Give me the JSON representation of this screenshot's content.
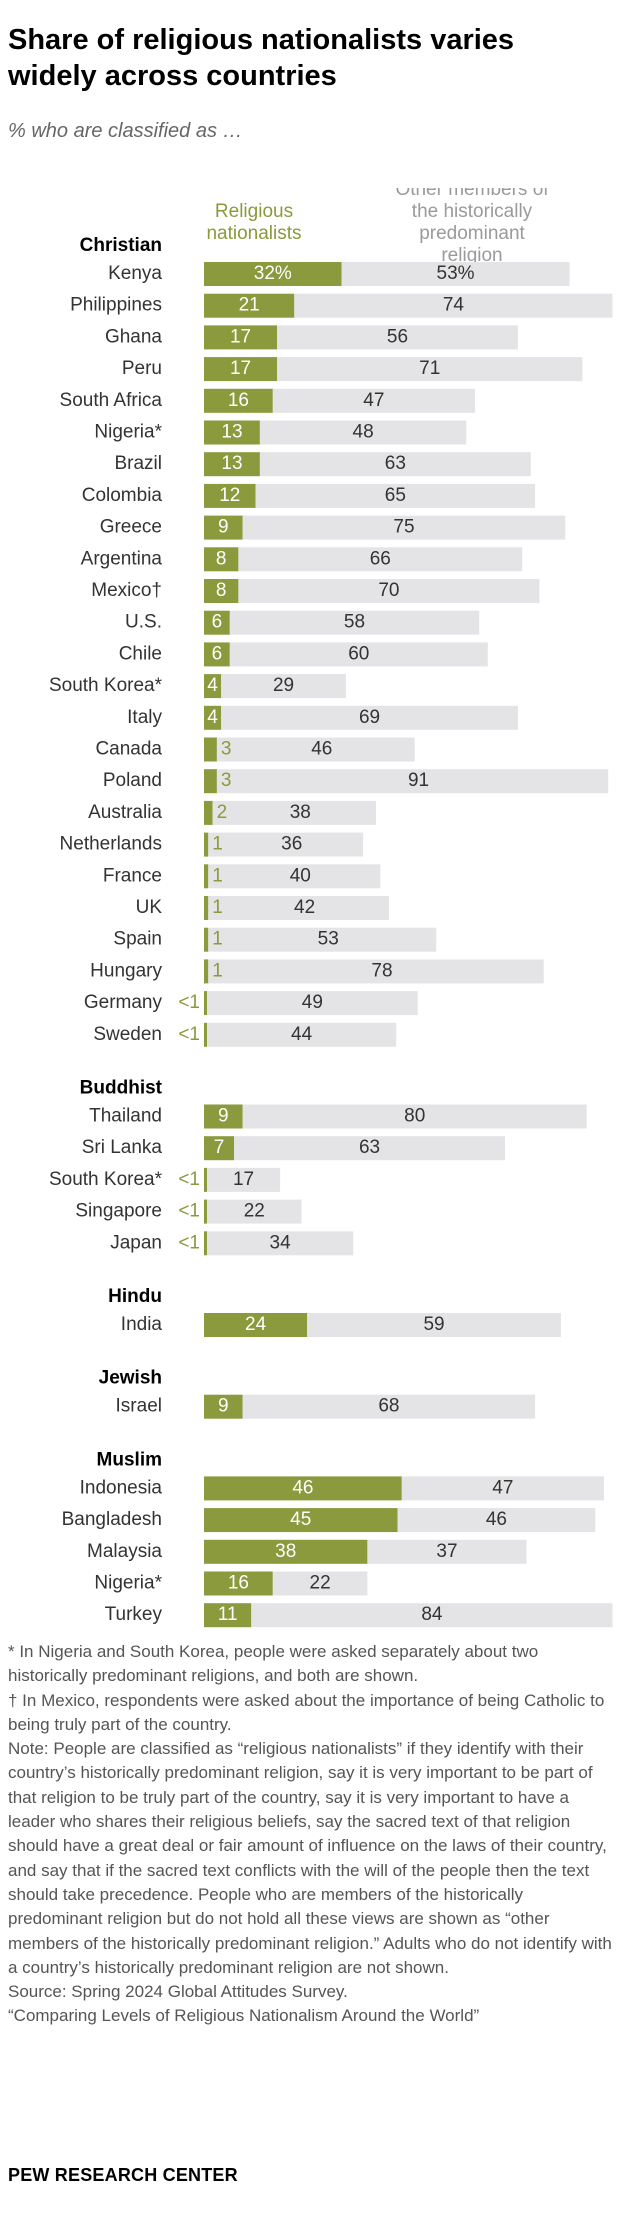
{
  "title": "Share of religious nationalists varies widely across countries",
  "subtitle": "% who are classified as …",
  "chart_data": {
    "type": "bar",
    "stacked": true,
    "orientation": "horizontal",
    "series": [
      {
        "name": "Religious nationalists",
        "color": "#8a9a3c"
      },
      {
        "name": "Other members of the historically predominant religion",
        "color": "#e4e4e6"
      }
    ],
    "groups": [
      {
        "name": "Christian",
        "rows": [
          {
            "label": "Kenya",
            "values": [
              32,
              53
            ],
            "labels": [
              "32%",
              "53%"
            ]
          },
          {
            "label": "Philippines",
            "values": [
              21,
              74
            ],
            "labels": [
              "21",
              "74"
            ]
          },
          {
            "label": "Ghana",
            "values": [
              17,
              56
            ],
            "labels": [
              "17",
              "56"
            ]
          },
          {
            "label": "Peru",
            "values": [
              17,
              71
            ],
            "labels": [
              "17",
              "71"
            ]
          },
          {
            "label": "South Africa",
            "values": [
              16,
              47
            ],
            "labels": [
              "16",
              "47"
            ]
          },
          {
            "label": "Nigeria*",
            "values": [
              13,
              48
            ],
            "labels": [
              "13",
              "48"
            ]
          },
          {
            "label": "Brazil",
            "values": [
              13,
              63
            ],
            "labels": [
              "13",
              "63"
            ]
          },
          {
            "label": "Colombia",
            "values": [
              12,
              65
            ],
            "labels": [
              "12",
              "65"
            ]
          },
          {
            "label": "Greece",
            "values": [
              9,
              75
            ],
            "labels": [
              "9",
              "75"
            ]
          },
          {
            "label": "Argentina",
            "values": [
              8,
              66
            ],
            "labels": [
              "8",
              "66"
            ]
          },
          {
            "label": "Mexico†",
            "values": [
              8,
              70
            ],
            "labels": [
              "8",
              "70"
            ]
          },
          {
            "label": "U.S.",
            "values": [
              6,
              58
            ],
            "labels": [
              "6",
              "58"
            ]
          },
          {
            "label": "Chile",
            "values": [
              6,
              60
            ],
            "labels": [
              "6",
              "60"
            ]
          },
          {
            "label": "South Korea*",
            "values": [
              4,
              29
            ],
            "labels": [
              "4",
              "29"
            ]
          },
          {
            "label": "Italy",
            "values": [
              4,
              69
            ],
            "labels": [
              "4",
              "69"
            ]
          },
          {
            "label": "Canada",
            "values": [
              3,
              46
            ],
            "labels": [
              "3",
              "46"
            ]
          },
          {
            "label": "Poland",
            "values": [
              3,
              91
            ],
            "labels": [
              "3",
              "91"
            ]
          },
          {
            "label": "Australia",
            "values": [
              2,
              38
            ],
            "labels": [
              "2",
              "38"
            ]
          },
          {
            "label": "Netherlands",
            "values": [
              1,
              36
            ],
            "labels": [
              "1",
              "36"
            ]
          },
          {
            "label": "France",
            "values": [
              1,
              40
            ],
            "labels": [
              "1",
              "40"
            ]
          },
          {
            "label": "UK",
            "values": [
              1,
              42
            ],
            "labels": [
              "1",
              "42"
            ]
          },
          {
            "label": "Spain",
            "values": [
              1,
              53
            ],
            "labels": [
              "1",
              "53"
            ]
          },
          {
            "label": "Hungary",
            "values": [
              1,
              78
            ],
            "labels": [
              "1",
              "78"
            ]
          },
          {
            "label": "Germany",
            "values": [
              0.4,
              49
            ],
            "labels": [
              "<1",
              "49"
            ]
          },
          {
            "label": "Sweden",
            "values": [
              0.4,
              44
            ],
            "labels": [
              "<1",
              "44"
            ]
          }
        ]
      },
      {
        "name": "Buddhist",
        "rows": [
          {
            "label": "Thailand",
            "values": [
              9,
              80
            ],
            "labels": [
              "9",
              "80"
            ]
          },
          {
            "label": "Sri Lanka",
            "values": [
              7,
              63
            ],
            "labels": [
              "7",
              "63"
            ]
          },
          {
            "label": "South Korea*",
            "values": [
              0.4,
              17
            ],
            "labels": [
              "<1",
              "17"
            ]
          },
          {
            "label": "Singapore",
            "values": [
              0.4,
              22
            ],
            "labels": [
              "<1",
              "22"
            ]
          },
          {
            "label": "Japan",
            "values": [
              0.4,
              34
            ],
            "labels": [
              "<1",
              "34"
            ]
          }
        ]
      },
      {
        "name": "Hindu",
        "rows": [
          {
            "label": "India",
            "values": [
              24,
              59
            ],
            "labels": [
              "24",
              "59"
            ]
          }
        ]
      },
      {
        "name": "Jewish",
        "rows": [
          {
            "label": "Israel",
            "values": [
              9,
              68
            ],
            "labels": [
              "9",
              "68"
            ]
          }
        ]
      },
      {
        "name": "Muslim",
        "rows": [
          {
            "label": "Indonesia",
            "values": [
              46,
              47
            ],
            "labels": [
              "46",
              "47"
            ]
          },
          {
            "label": "Bangladesh",
            "values": [
              45,
              46
            ],
            "labels": [
              "45",
              "46"
            ]
          },
          {
            "label": "Malaysia",
            "values": [
              38,
              37
            ],
            "labels": [
              "38",
              "37"
            ]
          },
          {
            "label": "Nigeria*",
            "values": [
              16,
              22
            ],
            "labels": [
              "16",
              "22"
            ]
          },
          {
            "label": "Turkey",
            "values": [
              11,
              84
            ],
            "labels": [
              "11",
              "84"
            ]
          }
        ]
      }
    ]
  },
  "notes": [
    "* In Nigeria and South Korea, people were asked separately about two historically predominant religions, and both are shown.",
    "† In Mexico, respondents were asked about the importance of being Catholic to being truly part of the country.",
    "Note: People are classified as “religious nationalists” if they identify with their country’s historically predominant religion, say it is very important to be part of that religion to be truly part of the country, say it is very important to have a leader who shares their religious beliefs, say the sacred text of that religion should have a great deal or fair amount of influence on the laws of their country, and say that if the sacred text conflicts with the will of the people then the text should take precedence. People who are members of the historically predominant religion but do not hold all these views are shown as “other members of the historically predominant religion.” Adults who do not identify with a country’s historically predominant religion are not shown.",
    "Source: Spring 2024 Global Attitudes Survey.",
    "“Comparing Levels of Religious Nationalism Around the World”"
  ],
  "footer": "PEW RESEARCH CENTER"
}
